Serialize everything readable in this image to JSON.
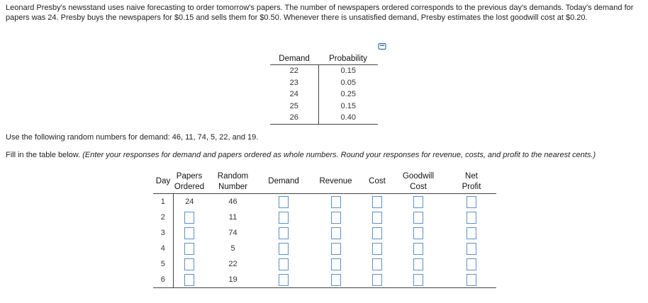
{
  "problem": {
    "intro_text": "Leonard Presby's newsstand uses naive forecasting to order tomorrow's papers. The number of newspapers ordered corresponds to the previous day's demands. Today's demand for papers was 24. Presby buys the newspapers for $0.15 and sells them for $0.50. Whenever there is unsatisfied demand, Presby estimates the lost goodwill cost at $0.20.",
    "random_numbers_text": "Use the following random numbers for demand: 46, 11, 74, 5, 22, and 19.",
    "instructions_lead": "Fill in the table below.",
    "instructions_italic": "(Enter your responses for demand and papers ordered as whole numbers. Round your responses for revenue, costs, and profit to the nearest cents.)"
  },
  "probability_table": {
    "headers": [
      "Demand",
      "Probability"
    ],
    "rows": [
      {
        "demand": "22",
        "probability": "0.15"
      },
      {
        "demand": "23",
        "probability": "0.05"
      },
      {
        "demand": "24",
        "probability": "0.25"
      },
      {
        "demand": "25",
        "probability": "0.15"
      },
      {
        "demand": "26",
        "probability": "0.40"
      }
    ]
  },
  "simulation_table": {
    "headers": {
      "day": "Day",
      "papers_1": "Papers",
      "papers_2": "Ordered",
      "random_1": "Random",
      "random_2": "Number",
      "demand": "Demand",
      "revenue": "Revenue",
      "cost": "Cost",
      "goodwill_1": "Goodwill",
      "goodwill_2": "Cost",
      "net_1": "Net",
      "net_2": "Profit"
    },
    "rows": [
      {
        "day": "1",
        "papers_ordered": "24",
        "random_number": "46"
      },
      {
        "day": "2",
        "papers_ordered": "",
        "random_number": "11"
      },
      {
        "day": "3",
        "papers_ordered": "",
        "random_number": "74"
      },
      {
        "day": "4",
        "papers_ordered": "",
        "random_number": "5"
      },
      {
        "day": "5",
        "papers_ordered": "",
        "random_number": "22"
      },
      {
        "day": "6",
        "papers_ordered": "",
        "random_number": "19"
      }
    ]
  },
  "icons": {
    "copy": "copy-table-icon"
  },
  "colors": {
    "input_border": "#5f8fc7",
    "rule": "#444444"
  }
}
